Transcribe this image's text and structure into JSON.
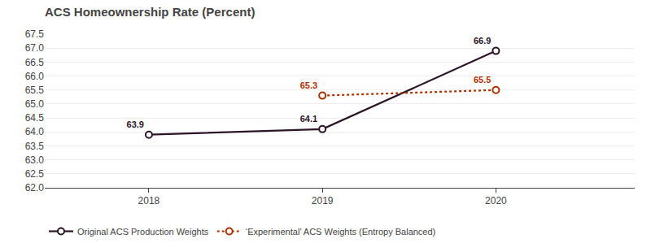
{
  "chart_data": {
    "type": "line",
    "title": "ACS Homeownership Rate (Percent)",
    "x": [
      2018,
      2019,
      2020
    ],
    "series": [
      {
        "name": "Original ACS Production Weights",
        "color": "#2B1527",
        "values": [
          63.9,
          64.1,
          66.9
        ],
        "line_style": "solid",
        "marker": "circle"
      },
      {
        "name": "‘Experimental’ ACS Weights (Entropy Balanced)",
        "color": "#B03000",
        "values": [
          null,
          65.3,
          65.5
        ],
        "line_style": "dotted",
        "marker": "circle"
      }
    ],
    "xlim": [
      2017.4,
      2020.8
    ],
    "xticks": [
      2018,
      2019,
      2020
    ],
    "ylim": [
      62.0,
      67.5
    ],
    "yticks": [
      {
        "value": 62.0,
        "label": "62.0"
      },
      62.5,
      {
        "value": 63.0,
        "label": "63.0"
      },
      63.5,
      {
        "value": 64.0,
        "label": "64.0"
      },
      64.5,
      {
        "value": 65.0,
        "label": "65.0"
      },
      65.5,
      {
        "value": 66.0,
        "label": "66.0"
      },
      66.5,
      {
        "value": 67.0,
        "label": "67.0"
      },
      67.5
    ],
    "grid": "y",
    "legend": "lower left",
    "data_labels": true
  }
}
